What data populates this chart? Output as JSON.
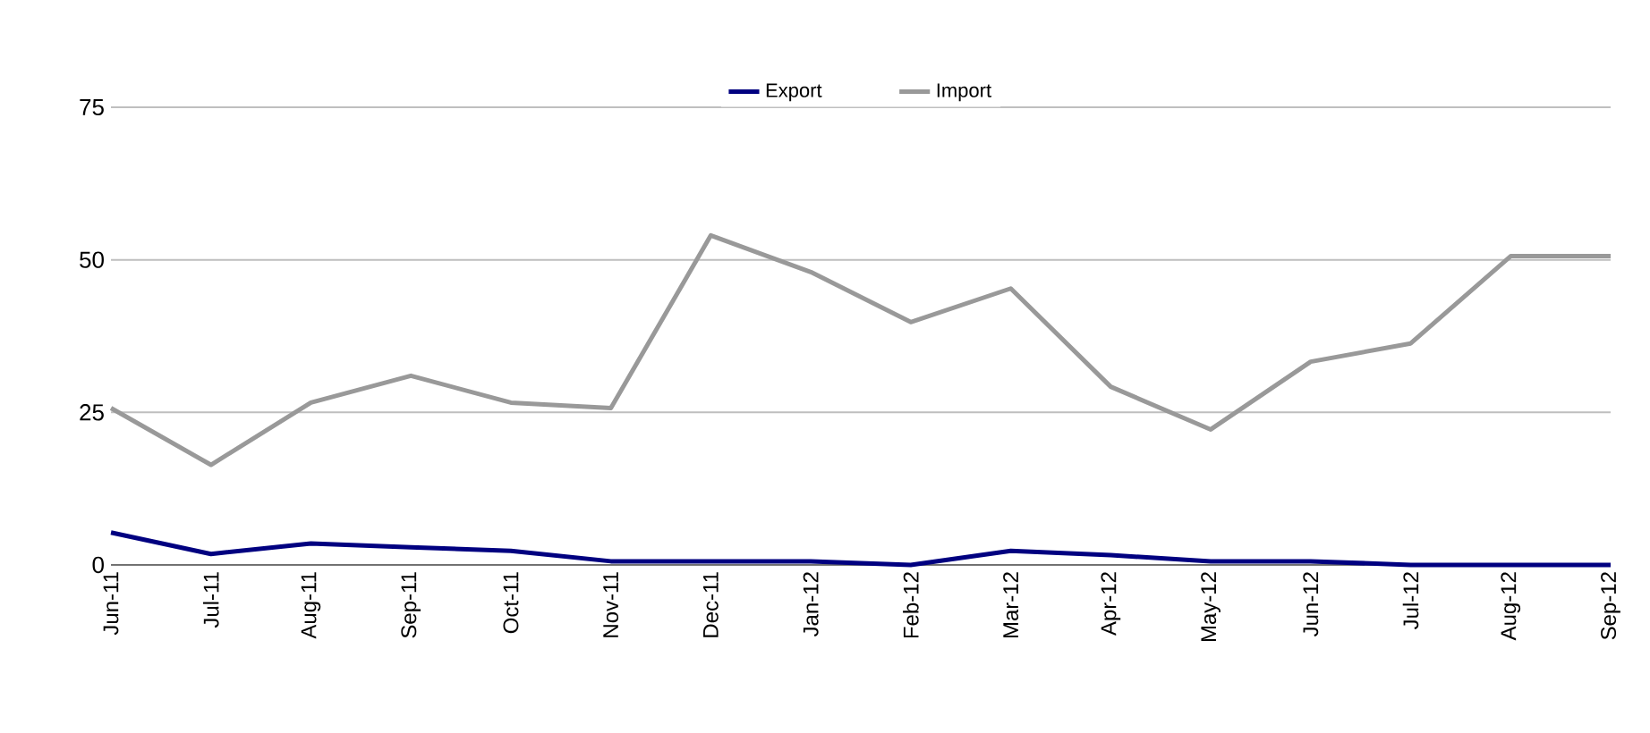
{
  "chart_data": {
    "type": "line",
    "categories": [
      "Jun-11",
      "Jul-11",
      "Aug-11",
      "Sep-11",
      "Oct-11",
      "Nov-11",
      "Dec-11",
      "Jan-12",
      "Feb-12",
      "Mar-12",
      "Apr-12",
      "May-12",
      "Jun-12",
      "Jul-12",
      "Aug-12",
      "Sep-12"
    ],
    "series": [
      {
        "name": "Export",
        "color": "#000080",
        "values": [
          5.3,
          1.8,
          3.5,
          2.9,
          2.3,
          0.6,
          0.6,
          0.6,
          0,
          2.3,
          1.6,
          0.6,
          0.6,
          0,
          0,
          0
        ]
      },
      {
        "name": "Import",
        "color": "#999999",
        "values": [
          25.7,
          16.4,
          26.6,
          31,
          26.6,
          25.7,
          54,
          48,
          39.8,
          45.3,
          29.2,
          22.2,
          33.3,
          36.3,
          50.6,
          50.6
        ]
      }
    ],
    "ylim": [
      0,
      75
    ],
    "yticks": [
      0,
      25,
      50,
      75
    ],
    "grid": "y",
    "legend": "top",
    "marker": "none",
    "line_style": "solid"
  }
}
